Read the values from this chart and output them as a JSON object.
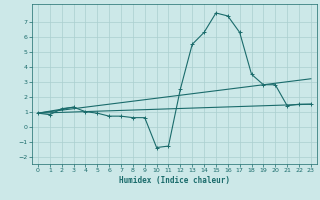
{
  "xlabel": "Humidex (Indice chaleur)",
  "bg_color": "#cce8e8",
  "grid_color": "#aacfcf",
  "line_color": "#1a6b6b",
  "xlim": [
    -0.5,
    23.5
  ],
  "ylim": [
    -2.5,
    8.2
  ],
  "xticks": [
    0,
    1,
    2,
    3,
    4,
    5,
    6,
    7,
    8,
    9,
    10,
    11,
    12,
    13,
    14,
    15,
    16,
    17,
    18,
    19,
    20,
    21,
    22,
    23
  ],
  "yticks": [
    -2,
    -1,
    0,
    1,
    2,
    3,
    4,
    5,
    6,
    7
  ],
  "line1_x": [
    0,
    1,
    2,
    3,
    4,
    5,
    6,
    7,
    8,
    9,
    10,
    11,
    12,
    13,
    14,
    15,
    16,
    17,
    18,
    19,
    20,
    21,
    22,
    23
  ],
  "line1_y": [
    0.9,
    0.8,
    1.2,
    1.3,
    1.0,
    0.9,
    0.7,
    0.7,
    0.6,
    0.6,
    -1.4,
    -1.3,
    2.5,
    5.5,
    6.3,
    7.6,
    7.4,
    6.3,
    3.5,
    2.8,
    2.8,
    1.4,
    1.5,
    1.5
  ],
  "line2_x": [
    0,
    23
  ],
  "line2_y": [
    0.9,
    1.5
  ],
  "line3_x": [
    0,
    23
  ],
  "line3_y": [
    0.9,
    3.2
  ],
  "line4_x": [
    0,
    3
  ],
  "line4_y": [
    0.9,
    1.3
  ]
}
